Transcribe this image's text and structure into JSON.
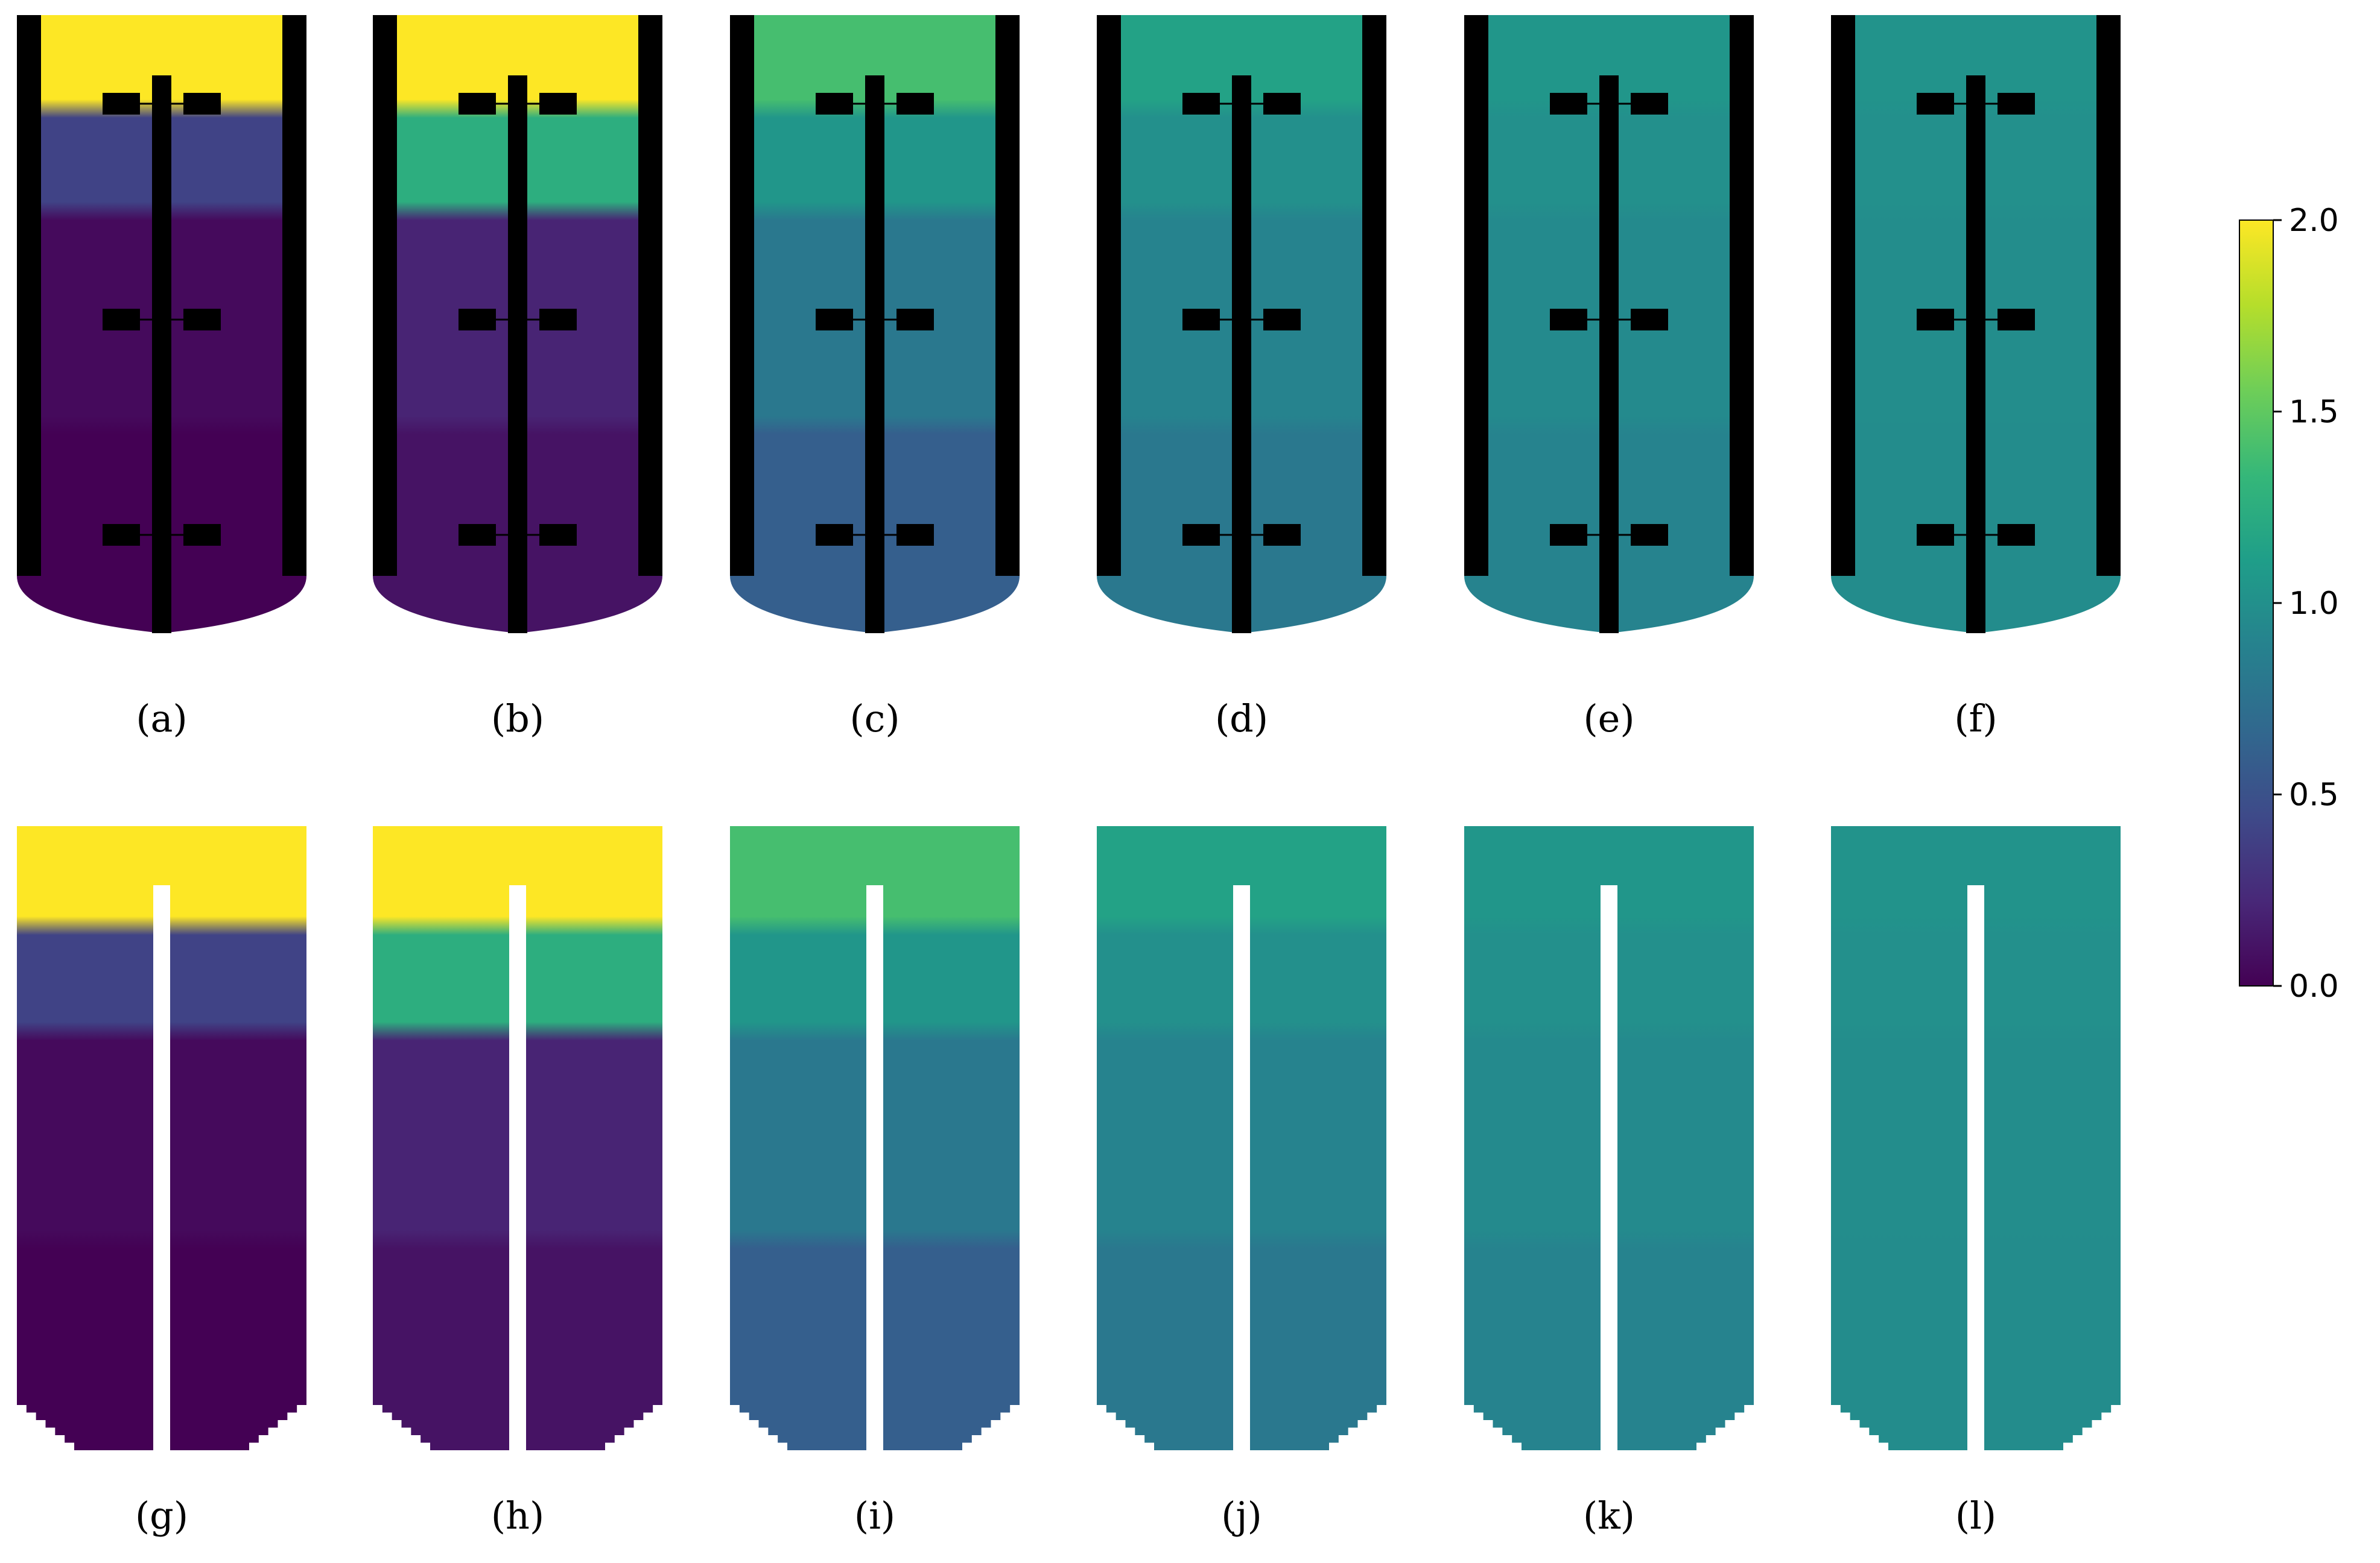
{
  "colors": {
    "background": "#ffffff",
    "solid": "#000000",
    "viridis": [
      "#440154",
      "#482878",
      "#3e4a89",
      "#31688e",
      "#26828e",
      "#1f9e89",
      "#35b779",
      "#6ece58",
      "#b5de2b",
      "#fde725"
    ]
  },
  "colorbar": {
    "min": 0.0,
    "max": 2.0,
    "ticks": [
      "0.0",
      "0.5",
      "1.0",
      "1.5",
      "2.0"
    ]
  },
  "rows": [
    {
      "kind": "vessel-with-internals",
      "panels": [
        {
          "label": "(a)",
          "id": "a",
          "stages": [
            0.0,
            0.05,
            0.4,
            2.0
          ]
        },
        {
          "label": "(b)",
          "id": "b",
          "stages": [
            0.1,
            0.2,
            1.25,
            2.0
          ]
        },
        {
          "label": "(c)",
          "id": "c",
          "stages": [
            0.6,
            0.8,
            1.05,
            1.4
          ]
        },
        {
          "label": "(d)",
          "id": "d",
          "stages": [
            0.8,
            0.9,
            1.0,
            1.15
          ]
        },
        {
          "label": "(e)",
          "id": "e",
          "stages": [
            0.9,
            0.95,
            1.0,
            1.05
          ]
        },
        {
          "label": "(f)",
          "id": "f",
          "stages": [
            0.97,
            0.98,
            1.0,
            1.02
          ]
        }
      ]
    },
    {
      "kind": "cross-section",
      "panels": [
        {
          "label": "(g)",
          "id": "g",
          "stages": [
            0.0,
            0.05,
            0.4,
            2.0
          ]
        },
        {
          "label": "(h)",
          "id": "h",
          "stages": [
            0.1,
            0.2,
            1.25,
            2.0
          ]
        },
        {
          "label": "(i)",
          "id": "i",
          "stages": [
            0.6,
            0.8,
            1.05,
            1.4
          ]
        },
        {
          "label": "(j)",
          "id": "j",
          "stages": [
            0.8,
            0.9,
            1.0,
            1.15
          ]
        },
        {
          "label": "(k)",
          "id": "k",
          "stages": [
            0.9,
            0.95,
            1.0,
            1.05
          ]
        },
        {
          "label": "(l)",
          "id": "l",
          "stages": [
            0.97,
            0.98,
            1.0,
            1.02
          ]
        }
      ]
    }
  ]
}
